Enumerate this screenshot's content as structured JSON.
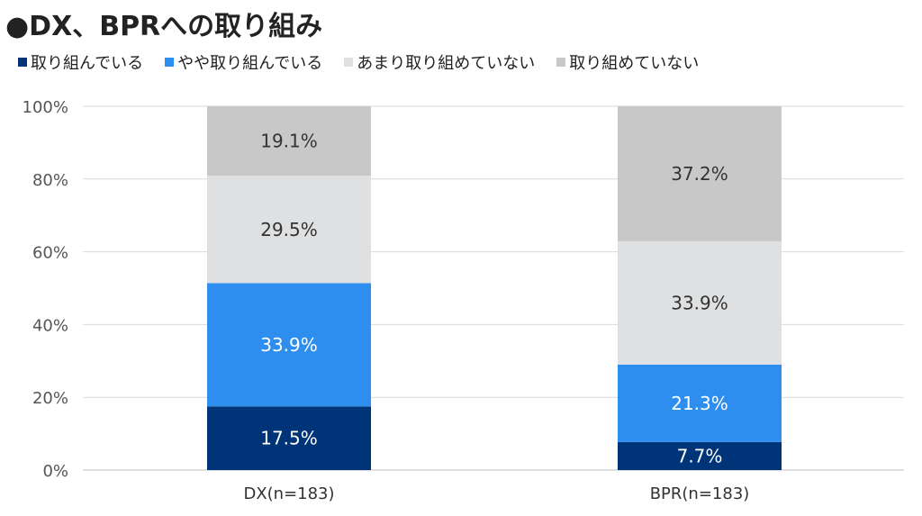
{
  "chart_data": {
    "type": "bar",
    "stacked": true,
    "title": "●DX、BPRへの取り組み",
    "categories": [
      "DX(n=183)",
      "BPR(n=183)"
    ],
    "series": [
      {
        "name": "取り組んでいる",
        "values": [
          17.5,
          7.7
        ],
        "labels": [
          "17.5%",
          "7.7%"
        ],
        "color": "#003478",
        "label_color": "#ffffff"
      },
      {
        "name": "やや取り組んでいる",
        "values": [
          33.9,
          21.3
        ],
        "labels": [
          "33.9%",
          "21.3%"
        ],
        "color": "#2e8ef0",
        "label_color": "#ffffff"
      },
      {
        "name": "あまり取り組めていない",
        "values": [
          29.5,
          33.9
        ],
        "labels": [
          "29.5%",
          "33.9%"
        ],
        "color": "#dee0e2",
        "label_color": "#333333"
      },
      {
        "name": "取り組めていない",
        "values": [
          19.1,
          37.2
        ],
        "labels": [
          "19.1%",
          "37.2%"
        ],
        "color": "#c8c8c8",
        "label_color": "#333333"
      }
    ],
    "ylim": [
      0,
      100
    ],
    "yticks": [
      0,
      20,
      40,
      60,
      80,
      100
    ],
    "ytick_labels": [
      "0%",
      "20%",
      "40%",
      "60%",
      "80%",
      "100%"
    ],
    "grid": true,
    "legend_position": "top"
  }
}
